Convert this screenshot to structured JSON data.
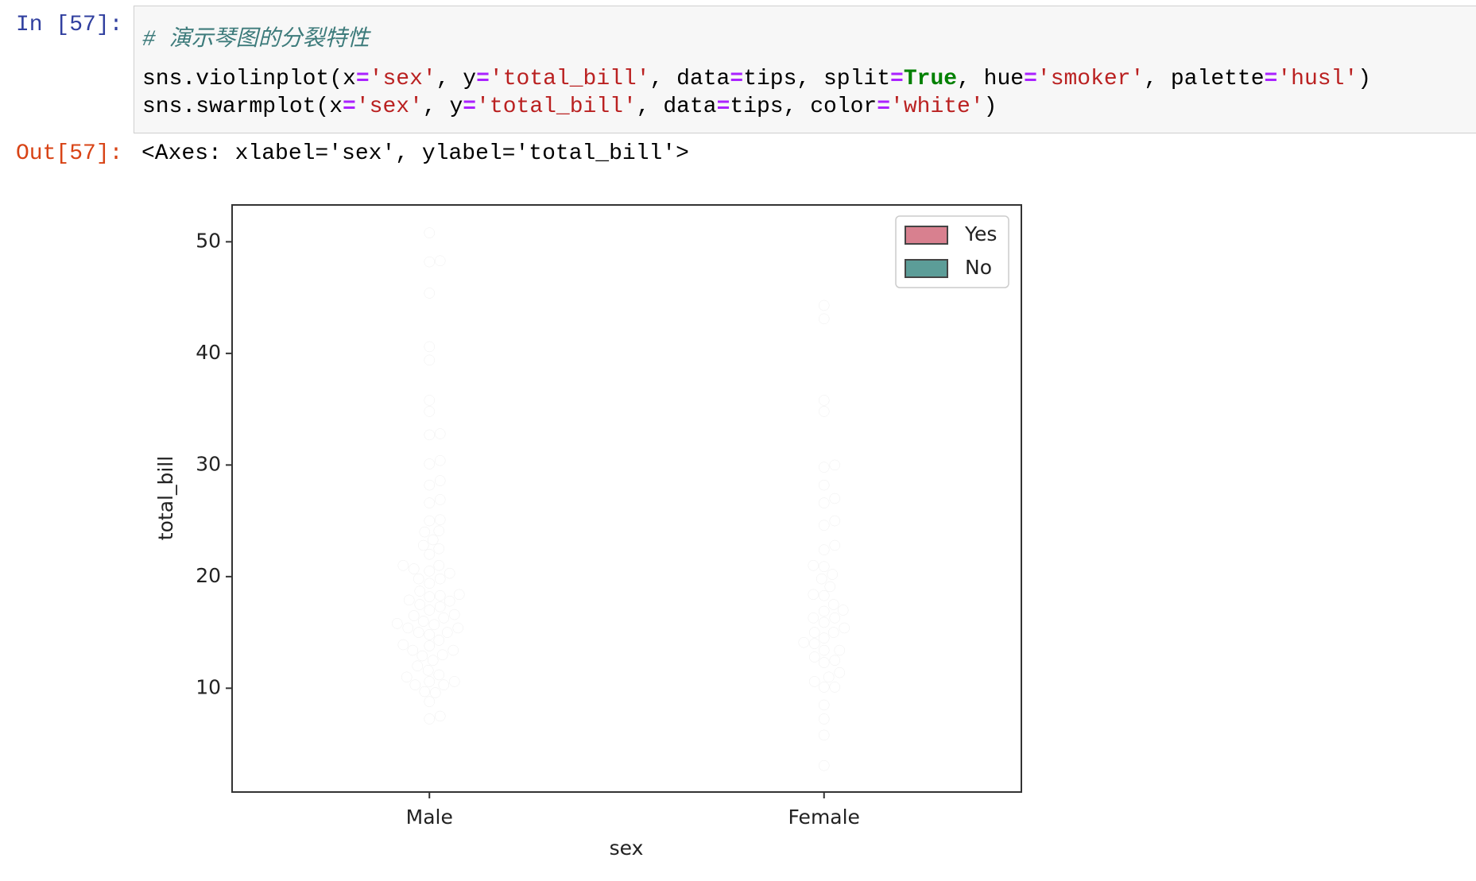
{
  "cell": {
    "input_prompt": "In [57]:",
    "comment": "# 演示琴图的分裂特性",
    "code_lines": [
      [
        "sns.violinplot(x",
        "=",
        "'sex'",
        ", y",
        "=",
        "'total_bill'",
        ", data",
        "=",
        "tips, split",
        "=",
        "True",
        ", hue",
        "=",
        "'smoker'",
        ", palette",
        "=",
        "'husl'",
        ")"
      ],
      [
        "sns.swarmplot(x",
        "=",
        "'sex'",
        ", y",
        "=",
        "'total_bill'",
        ", data",
        "=",
        "tips, color",
        "=",
        "'white'",
        ")"
      ]
    ],
    "output_prompt": "Out[57]:",
    "output": "<Axes: xlabel='sex', ylabel='total_bill'>"
  },
  "chart_data": {
    "type": "violin",
    "split": true,
    "xlabel": "sex",
    "ylabel": "total_bill",
    "categories": [
      "Male",
      "Female"
    ],
    "ylim": [
      0.7,
      53.3
    ],
    "yticks": [
      10,
      20,
      30,
      40,
      50
    ],
    "legend": "upper right",
    "swarm_color": "white",
    "series": [
      {
        "name": "Yes",
        "color": "#d8808f",
        "values": [
          [
            7.25,
            9.6,
            10.3,
            10.6,
            11.2,
            12.9,
            13.4,
            13.9,
            15.0,
            15.4,
            15.7,
            16.0,
            16.5,
            17.5,
            17.9,
            18.2,
            18.4,
            19.8,
            20.5,
            21.0,
            22.8,
            24.1,
            25.1,
            26.6,
            28.2,
            30.1,
            32.8,
            35.8,
            40.6,
            45.4,
            48.2,
            50.8
          ],
          [
            3.07,
            5.8,
            8.5,
            10.1,
            11.0,
            12.5,
            13.4,
            14.1,
            15.0,
            16.3,
            17.0,
            18.3,
            19.8,
            20.9,
            22.8,
            25.0,
            27.0,
            28.2,
            30.0,
            34.8,
            43.1,
            44.3
          ]
        ]
      },
      {
        "name": "No",
        "color": "#5c9d98",
        "values": [
          [
            7.5,
            8.8,
            9.7,
            10.3,
            10.6,
            11.0,
            11.6,
            12.0,
            12.5,
            13.0,
            13.4,
            13.8,
            14.3,
            14.8,
            15.0,
            15.4,
            15.8,
            16.3,
            16.6,
            17.0,
            17.3,
            17.8,
            18.3,
            18.7,
            19.4,
            19.8,
            20.3,
            20.7,
            21.0,
            22.0,
            22.5,
            23.3,
            24.0,
            25.0,
            26.9,
            28.6,
            30.4,
            32.7,
            34.8,
            39.4,
            48.3
          ],
          [
            7.25,
            10.1,
            10.6,
            11.4,
            12.3,
            12.8,
            13.4,
            14.0,
            14.5,
            15.0,
            15.4,
            15.9,
            16.3,
            16.9,
            17.5,
            18.4,
            19.1,
            20.2,
            21.0,
            22.4,
            24.6,
            26.6,
            29.8,
            35.8
          ]
        ]
      }
    ]
  }
}
